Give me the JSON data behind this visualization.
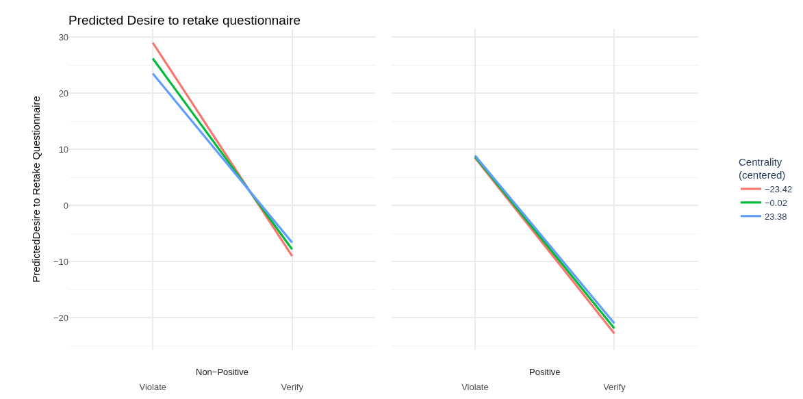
{
  "chart_data": [
    {
      "type": "line",
      "title": "Predicted Desire to retake questionnaire",
      "ylabel": "PredictedDesire to Retake Questionnaire",
      "xlabel": "Non−Positive",
      "categories": [
        "Violate",
        "Verify"
      ],
      "series": [
        {
          "color": "#f8766d",
          "values": [
            29.0,
            -9.0
          ]
        },
        {
          "color": "#00ba38",
          "values": [
            26.2,
            -7.8
          ]
        },
        {
          "color": "#619cff",
          "values": [
            23.5,
            -6.6
          ]
        }
      ],
      "ylim": [
        -25.7,
        31.5
      ],
      "yticks": [
        -20,
        -10,
        0,
        10,
        20,
        30
      ],
      "grid": true,
      "legend": false
    },
    {
      "type": "line",
      "xlabel": "Positive",
      "categories": [
        "Violate",
        "Verify"
      ],
      "legend_title": "Centrality\n(centered)",
      "series": [
        {
          "name": "−23.42",
          "color": "#f8766d",
          "values": [
            8.5,
            -22.8
          ]
        },
        {
          "name": "−0.02",
          "color": "#00ba38",
          "values": [
            8.7,
            -21.9
          ]
        },
        {
          "name": "23.38",
          "color": "#619cff",
          "values": [
            8.9,
            -21.0
          ]
        }
      ],
      "ylim": [
        -25.7,
        31.5
      ],
      "yticks": [
        -20,
        -10,
        0,
        10,
        20,
        30
      ],
      "grid": true,
      "legend": "right",
      "tick_labels": "x"
    }
  ]
}
